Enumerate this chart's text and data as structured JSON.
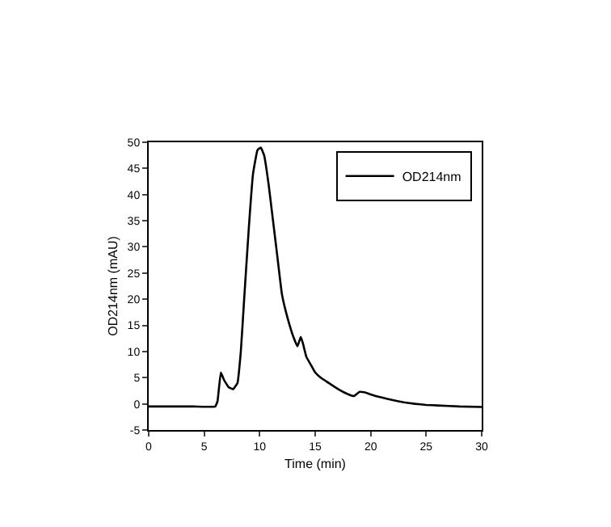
{
  "chart_data": {
    "type": "line",
    "xlabel": "Time (min)",
    "ylabel": "OD214nm (mAU)",
    "xlim": [
      0,
      30
    ],
    "xticks": [
      0,
      5,
      10,
      15,
      20,
      25,
      30
    ],
    "ylim": [
      -5,
      50
    ],
    "yticks": [
      -5,
      0,
      5,
      10,
      15,
      20,
      25,
      30,
      35,
      40,
      45,
      50
    ],
    "legend": "top right",
    "series": [
      {
        "name": "OD214nm",
        "color": "#000000",
        "x": [
          0,
          2,
          4,
          6,
          6.2,
          6.5,
          6.8,
          7.2,
          7.6,
          8.0,
          8.3,
          8.6,
          9.0,
          9.4,
          9.8,
          10.1,
          10.4,
          10.8,
          11.2,
          11.6,
          12.0,
          12.5,
          13.0,
          13.4,
          13.7,
          13.9,
          14.2,
          14.6,
          15.0,
          15.5,
          16,
          17,
          18,
          18.5,
          19,
          19.5,
          20,
          21,
          22,
          23,
          24,
          25,
          26,
          28,
          30
        ],
        "values": [
          -0.5,
          -0.5,
          -0.5,
          -0.5,
          0.5,
          6,
          4.5,
          3.2,
          2.8,
          4,
          10,
          20,
          33,
          44,
          48.5,
          49,
          47.5,
          42,
          35,
          28,
          21,
          16.5,
          13,
          11,
          12.8,
          11.5,
          9,
          7.5,
          6,
          5,
          4.3,
          2.9,
          1.8,
          1.5,
          2.3,
          2.2,
          1.8,
          1.2,
          0.7,
          0.3,
          0,
          -0.2,
          -0.3,
          -0.5,
          -0.6
        ]
      }
    ]
  }
}
